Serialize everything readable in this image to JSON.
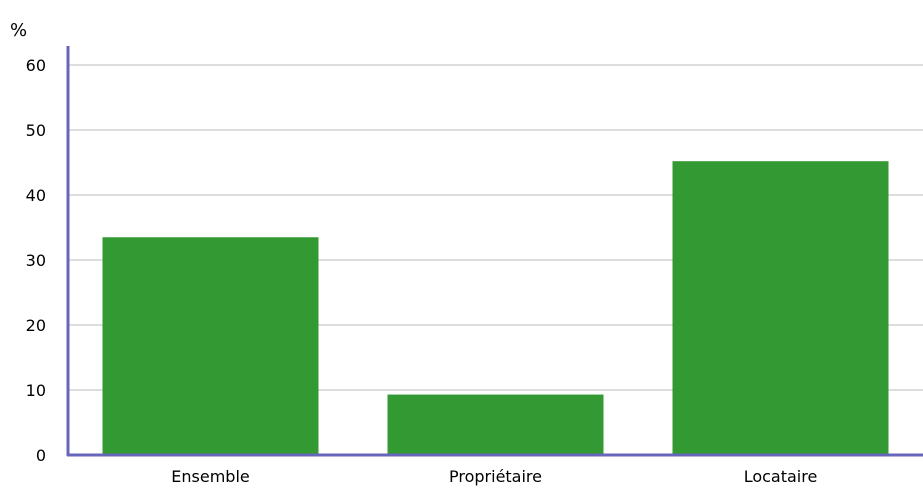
{
  "chart_data": {
    "type": "bar",
    "title": "",
    "ylabel": "%",
    "xlabel": "",
    "categories": [
      "Ensemble",
      "Propriétaire",
      "Locataire"
    ],
    "values": [
      33.5,
      9.3,
      45.2
    ],
    "ylim": [
      0,
      60
    ],
    "yticks": [
      "0",
      "10",
      "20",
      "30",
      "40",
      "50",
      "60"
    ],
    "grid": true,
    "legend": "none",
    "colors": {
      "bar": "#339933",
      "axis": "#6666bb",
      "grid": "#dddddd",
      "text": "#000000"
    }
  }
}
